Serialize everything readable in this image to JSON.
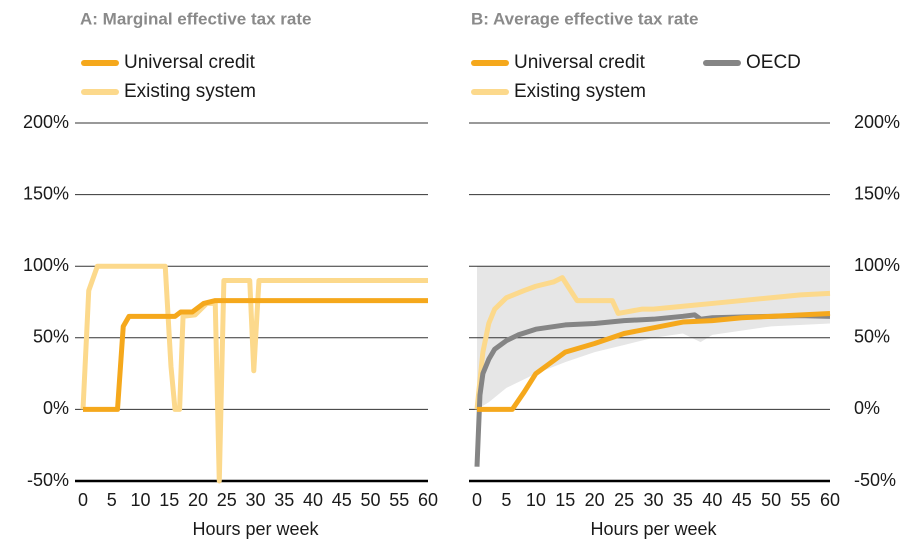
{
  "chart_data": [
    {
      "type": "line",
      "title": "A: Marginal effective tax rate",
      "xlabel": "Hours per week",
      "y_axis_side": "left",
      "xlim": [
        0,
        60
      ],
      "xticks": [
        0,
        5,
        10,
        15,
        20,
        25,
        30,
        35,
        40,
        45,
        50,
        55,
        60
      ],
      "ylim": [
        -50,
        200
      ],
      "yticks": [
        {
          "value": -50,
          "label": "-50%"
        },
        {
          "value": 0,
          "label": "0%"
        },
        {
          "value": 50,
          "label": "50%"
        },
        {
          "value": 100,
          "label": "100%"
        },
        {
          "value": 150,
          "label": "150%"
        },
        {
          "value": 200,
          "label": "200%"
        }
      ],
      "grid": true,
      "series": [
        {
          "name": "Universal credit",
          "color": "#f5a81c",
          "x": [
            0,
            6,
            7,
            8,
            16,
            17,
            19,
            21,
            23,
            60
          ],
          "values": [
            0,
            0,
            58,
            65,
            65,
            68,
            68,
            74,
            76,
            76
          ]
        },
        {
          "name": "Existing system",
          "color": "#fcd98c",
          "x": [
            0,
            1,
            2.5,
            14.3,
            15.3,
            16,
            16.8,
            17.4,
            19.5,
            21.5,
            23,
            23.7,
            24.5,
            29,
            29.7,
            30.6,
            60
          ],
          "values": [
            0,
            83,
            100,
            100,
            30,
            0,
            0,
            65,
            66,
            74,
            74,
            -50,
            90,
            90,
            27,
            90,
            90
          ]
        }
      ]
    },
    {
      "type": "line",
      "title": "B: Average effective tax rate",
      "xlabel": "Hours per week",
      "y_axis_side": "right",
      "xlim": [
        0,
        60
      ],
      "xticks": [
        0,
        5,
        10,
        15,
        20,
        25,
        30,
        35,
        40,
        45,
        50,
        55,
        60
      ],
      "ylim": [
        -50,
        200
      ],
      "yticks": [
        {
          "value": -50,
          "label": "-50%"
        },
        {
          "value": 0,
          "label": "0%"
        },
        {
          "value": 50,
          "label": "50%"
        },
        {
          "value": 100,
          "label": "100%"
        },
        {
          "value": 150,
          "label": "150%"
        },
        {
          "value": 200,
          "label": "200%"
        }
      ],
      "grid": true,
      "band": {
        "color": "#e6e6e6",
        "x": [
          0,
          2,
          5,
          10,
          15,
          20,
          25,
          30,
          35,
          38,
          40,
          50,
          60
        ],
        "upper": [
          100,
          100,
          100,
          100,
          100,
          100,
          100,
          100,
          100,
          100,
          100,
          100,
          100
        ],
        "lower": [
          0,
          5,
          15,
          25,
          33,
          40,
          45,
          50,
          53,
          47,
          52,
          58,
          60
        ]
      },
      "series": [
        {
          "name": "Universal credit",
          "color": "#f5a81c",
          "x": [
            0,
            6,
            8,
            10,
            15,
            20,
            25,
            30,
            35,
            40,
            45,
            50,
            60
          ],
          "values": [
            0,
            0,
            12,
            25,
            40,
            46,
            53,
            57,
            61,
            62,
            64,
            65,
            67
          ]
        },
        {
          "name": "OECD",
          "color": "#858585",
          "x": [
            0,
            0.5,
            1,
            2,
            3,
            5,
            7,
            10,
            15,
            20,
            25,
            30,
            35,
            37,
            38,
            40,
            45,
            50,
            55,
            60
          ],
          "values": [
            -40,
            10,
            25,
            35,
            42,
            48,
            52,
            56,
            59,
            60,
            62,
            63,
            65,
            66,
            63,
            64,
            64.5,
            65,
            65.5,
            65
          ]
        },
        {
          "name": "Existing system",
          "color": "#fcd98c",
          "x": [
            0,
            1,
            2,
            3,
            5,
            8,
            10,
            13,
            14.5,
            17,
            23,
            24,
            28,
            30,
            35,
            40,
            45,
            50,
            55,
            60
          ],
          "values": [
            0,
            40,
            60,
            70,
            78,
            83,
            86,
            89,
            92,
            76,
            76,
            67,
            70,
            70,
            72,
            74,
            76,
            78,
            80,
            81
          ]
        }
      ]
    }
  ]
}
